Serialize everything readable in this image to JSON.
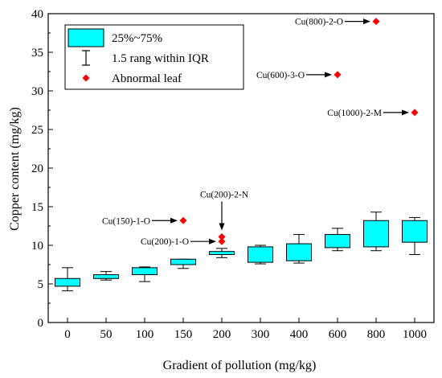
{
  "chart_data": {
    "type": "box",
    "xlabel": "Gradient of pollution  (mg/kg)",
    "ylabel": "Copper content  (mg/kg)",
    "ylim": [
      0,
      40
    ],
    "yticks": [
      0,
      5,
      10,
      15,
      20,
      25,
      30,
      35,
      40
    ],
    "categories": [
      "0",
      "50",
      "100",
      "150",
      "200",
      "300",
      "400",
      "600",
      "800",
      "1000"
    ],
    "boxes": [
      {
        "category": "0",
        "whisker_low": 4.1,
        "q1": 4.7,
        "q3": 5.7,
        "whisker_high": 7.1
      },
      {
        "category": "50",
        "whisker_low": 5.5,
        "q1": 5.7,
        "q3": 6.2,
        "whisker_high": 6.6
      },
      {
        "category": "100",
        "whisker_low": 5.3,
        "q1": 6.2,
        "q3": 7.1,
        "whisker_high": 7.2
      },
      {
        "category": "150",
        "whisker_low": 7.0,
        "q1": 7.5,
        "q3": 8.2,
        "whisker_high": 8.2
      },
      {
        "category": "200",
        "whisker_low": 8.4,
        "q1": 8.8,
        "q3": 9.2,
        "whisker_high": 9.6
      },
      {
        "category": "300",
        "whisker_low": 7.6,
        "q1": 7.8,
        "q3": 9.8,
        "whisker_high": 10.0
      },
      {
        "category": "400",
        "whisker_low": 7.7,
        "q1": 8.0,
        "q3": 10.2,
        "whisker_high": 11.4
      },
      {
        "category": "600",
        "whisker_low": 9.3,
        "q1": 9.7,
        "q3": 11.4,
        "whisker_high": 12.2
      },
      {
        "category": "800",
        "whisker_low": 9.3,
        "q1": 9.8,
        "q3": 13.2,
        "whisker_high": 14.3
      },
      {
        "category": "1000",
        "whisker_low": 8.8,
        "q1": 10.4,
        "q3": 13.2,
        "whisker_high": 13.6
      }
    ],
    "outliers": [
      {
        "category": "150",
        "value": 13.2,
        "label": "Cu(150)-1-O",
        "arrow": "left"
      },
      {
        "category": "200",
        "value": 11.1,
        "label": "Cu(200)-2-N",
        "arrow": "top"
      },
      {
        "category": "200",
        "value": 10.5,
        "label": "Cu(200)-1-O",
        "arrow": "left"
      },
      {
        "category": "600",
        "value": 32.1,
        "label": "Cu(600)-3-O",
        "arrow": "left"
      },
      {
        "category": "800",
        "value": 39.0,
        "label": "Cu(800)-2-O",
        "arrow": "left"
      },
      {
        "category": "1000",
        "value": 27.2,
        "label": "Cu(1000)-2-M",
        "arrow": "left"
      }
    ],
    "legend": {
      "placement": "top-left",
      "entries": [
        {
          "kind": "box",
          "label": "25%~75%"
        },
        {
          "kind": "whisker",
          "label": "1.5 rang within IQR"
        },
        {
          "kind": "outlier",
          "label": "Abnormal leaf"
        }
      ]
    },
    "colors": {
      "box_fill": "#00ffff",
      "outlier": "#ff0000",
      "line": "#000000"
    }
  }
}
